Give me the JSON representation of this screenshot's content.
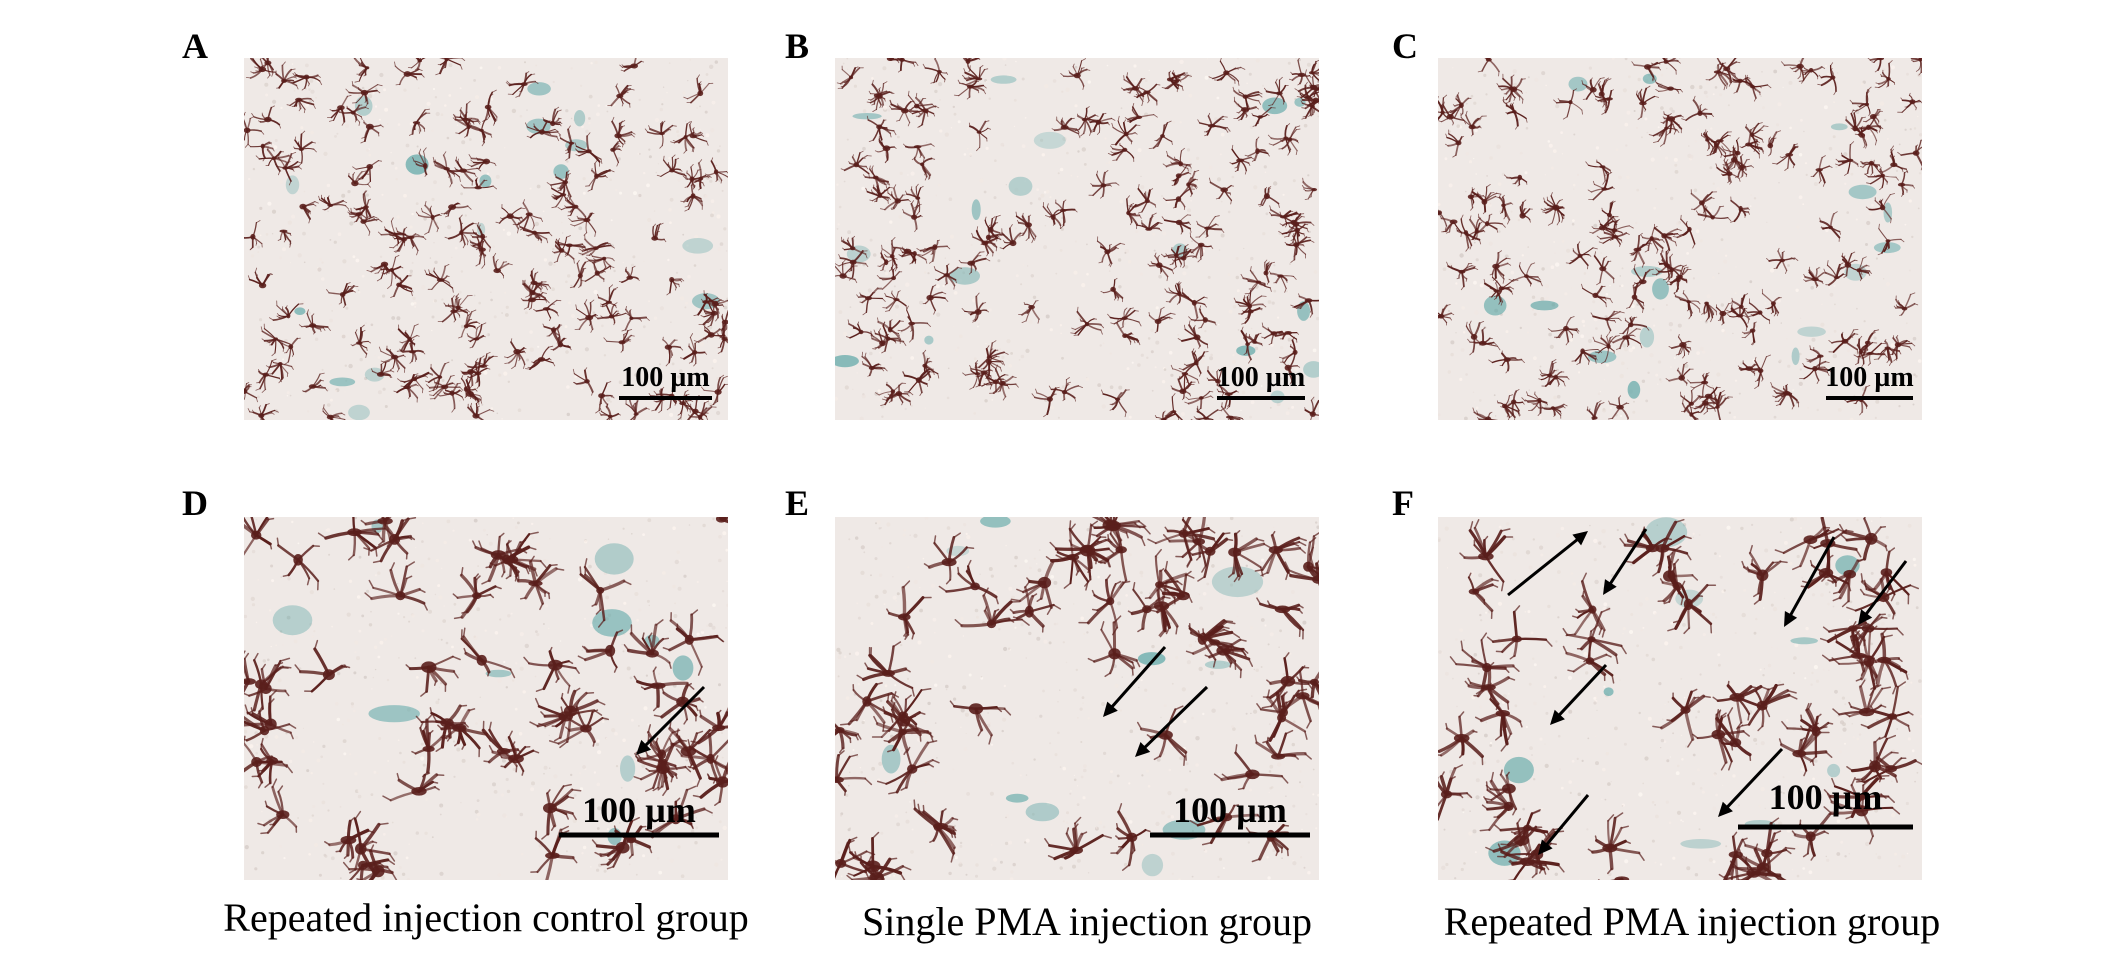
{
  "figure": {
    "panels": [
      {
        "letter": "A",
        "scale_bar": "100 µm",
        "magnification": "low",
        "arrows": 0,
        "accent": "#5aa5a5"
      },
      {
        "letter": "B",
        "scale_bar": "100 µm",
        "magnification": "low",
        "arrows": 0,
        "accent": "#5aa5a5"
      },
      {
        "letter": "C",
        "scale_bar": "100 µm",
        "magnification": "low",
        "arrows": 0,
        "accent": "#5aa5a5"
      },
      {
        "letter": "D",
        "scale_bar": "100 µm",
        "magnification": "high",
        "arrows": 1,
        "accent": "#5aa5a5"
      },
      {
        "letter": "E",
        "scale_bar": "100 µm",
        "magnification": "high",
        "arrows": 2,
        "accent": "#5aa5a5"
      },
      {
        "letter": "F",
        "scale_bar": "100 µm",
        "magnification": "high",
        "arrows": 7,
        "accent": "#5aa5a5"
      }
    ],
    "captions": [
      "Repeated injection control group",
      "Single PMA injection group",
      "Repeated PMA injection group"
    ],
    "colors": {
      "cell_stain": "#5a1f1c",
      "background_tissue": "#efe9e6",
      "counterstain": "#5aa5a5",
      "arrow": "#000000"
    }
  }
}
